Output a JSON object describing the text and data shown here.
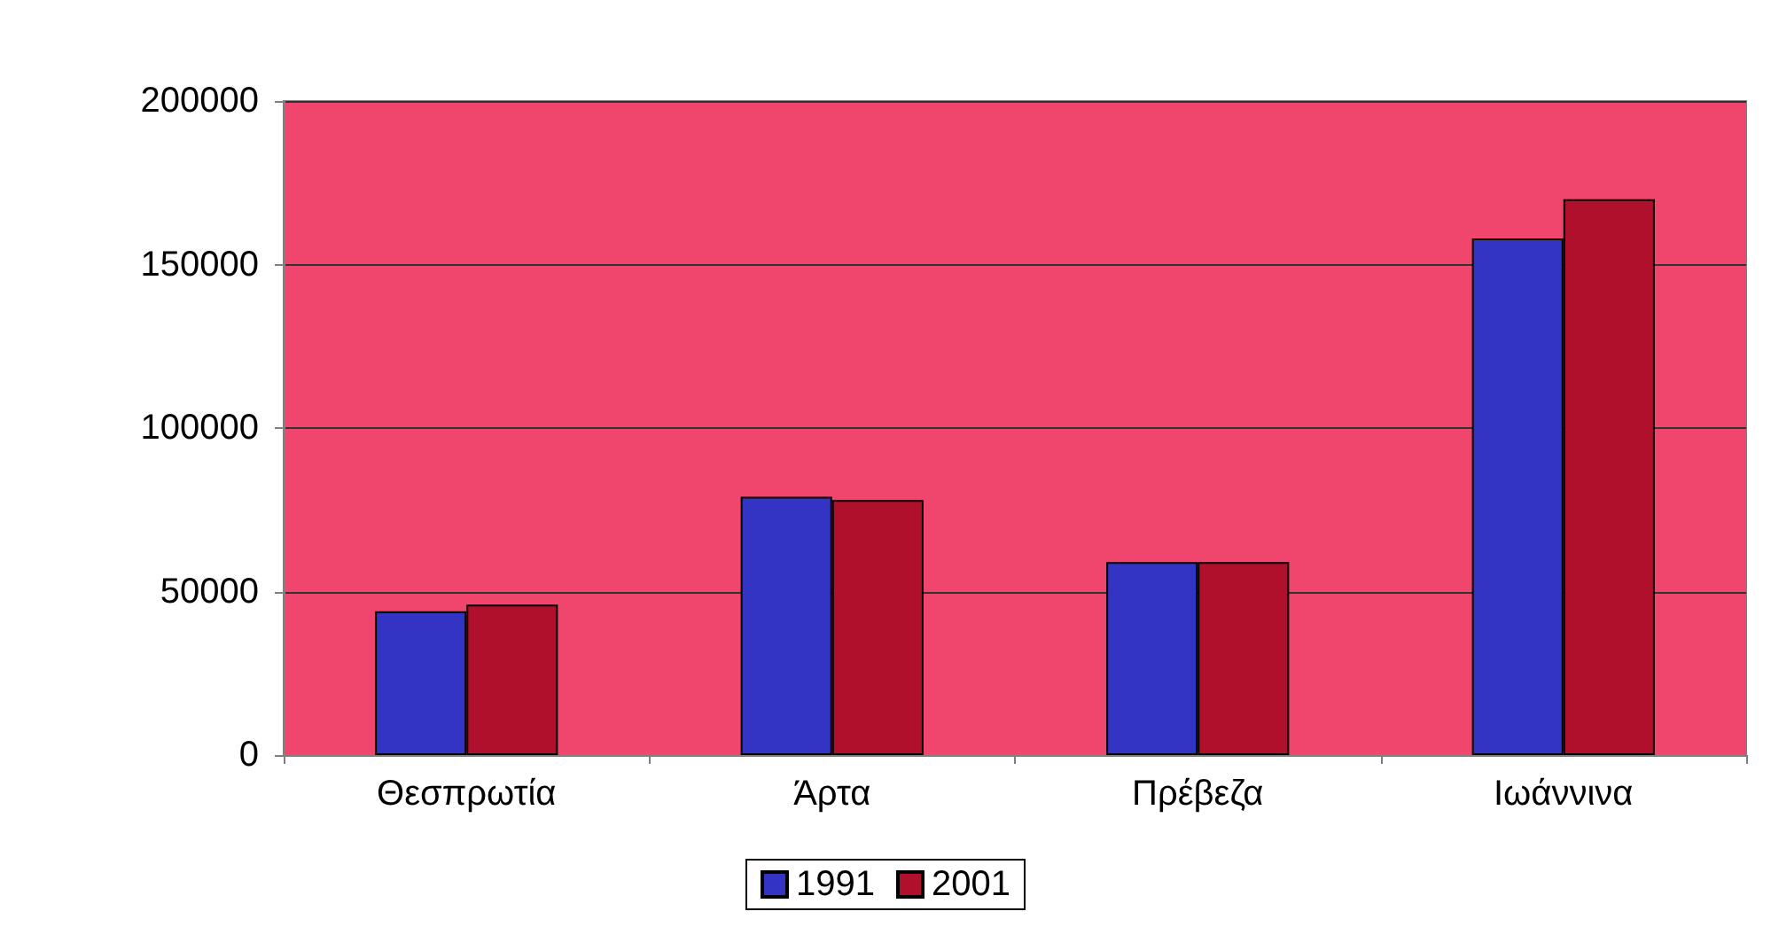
{
  "chart_data": {
    "type": "bar",
    "categories": [
      "Θεσπρωτία",
      "Άρτα",
      "Πρέβεζα",
      "Ιωάννινα"
    ],
    "series": [
      {
        "name": "1991",
        "color": "#3434c4",
        "values": [
          44000,
          79000,
          59000,
          158000
        ]
      },
      {
        "name": "2001",
        "color": "#b0102c",
        "values": [
          46000,
          78000,
          59000,
          170000
        ]
      }
    ],
    "ylim": [
      0,
      200000
    ],
    "yticks": [
      0,
      50000,
      100000,
      150000,
      200000
    ],
    "grid": "y",
    "legend": "bottom"
  }
}
